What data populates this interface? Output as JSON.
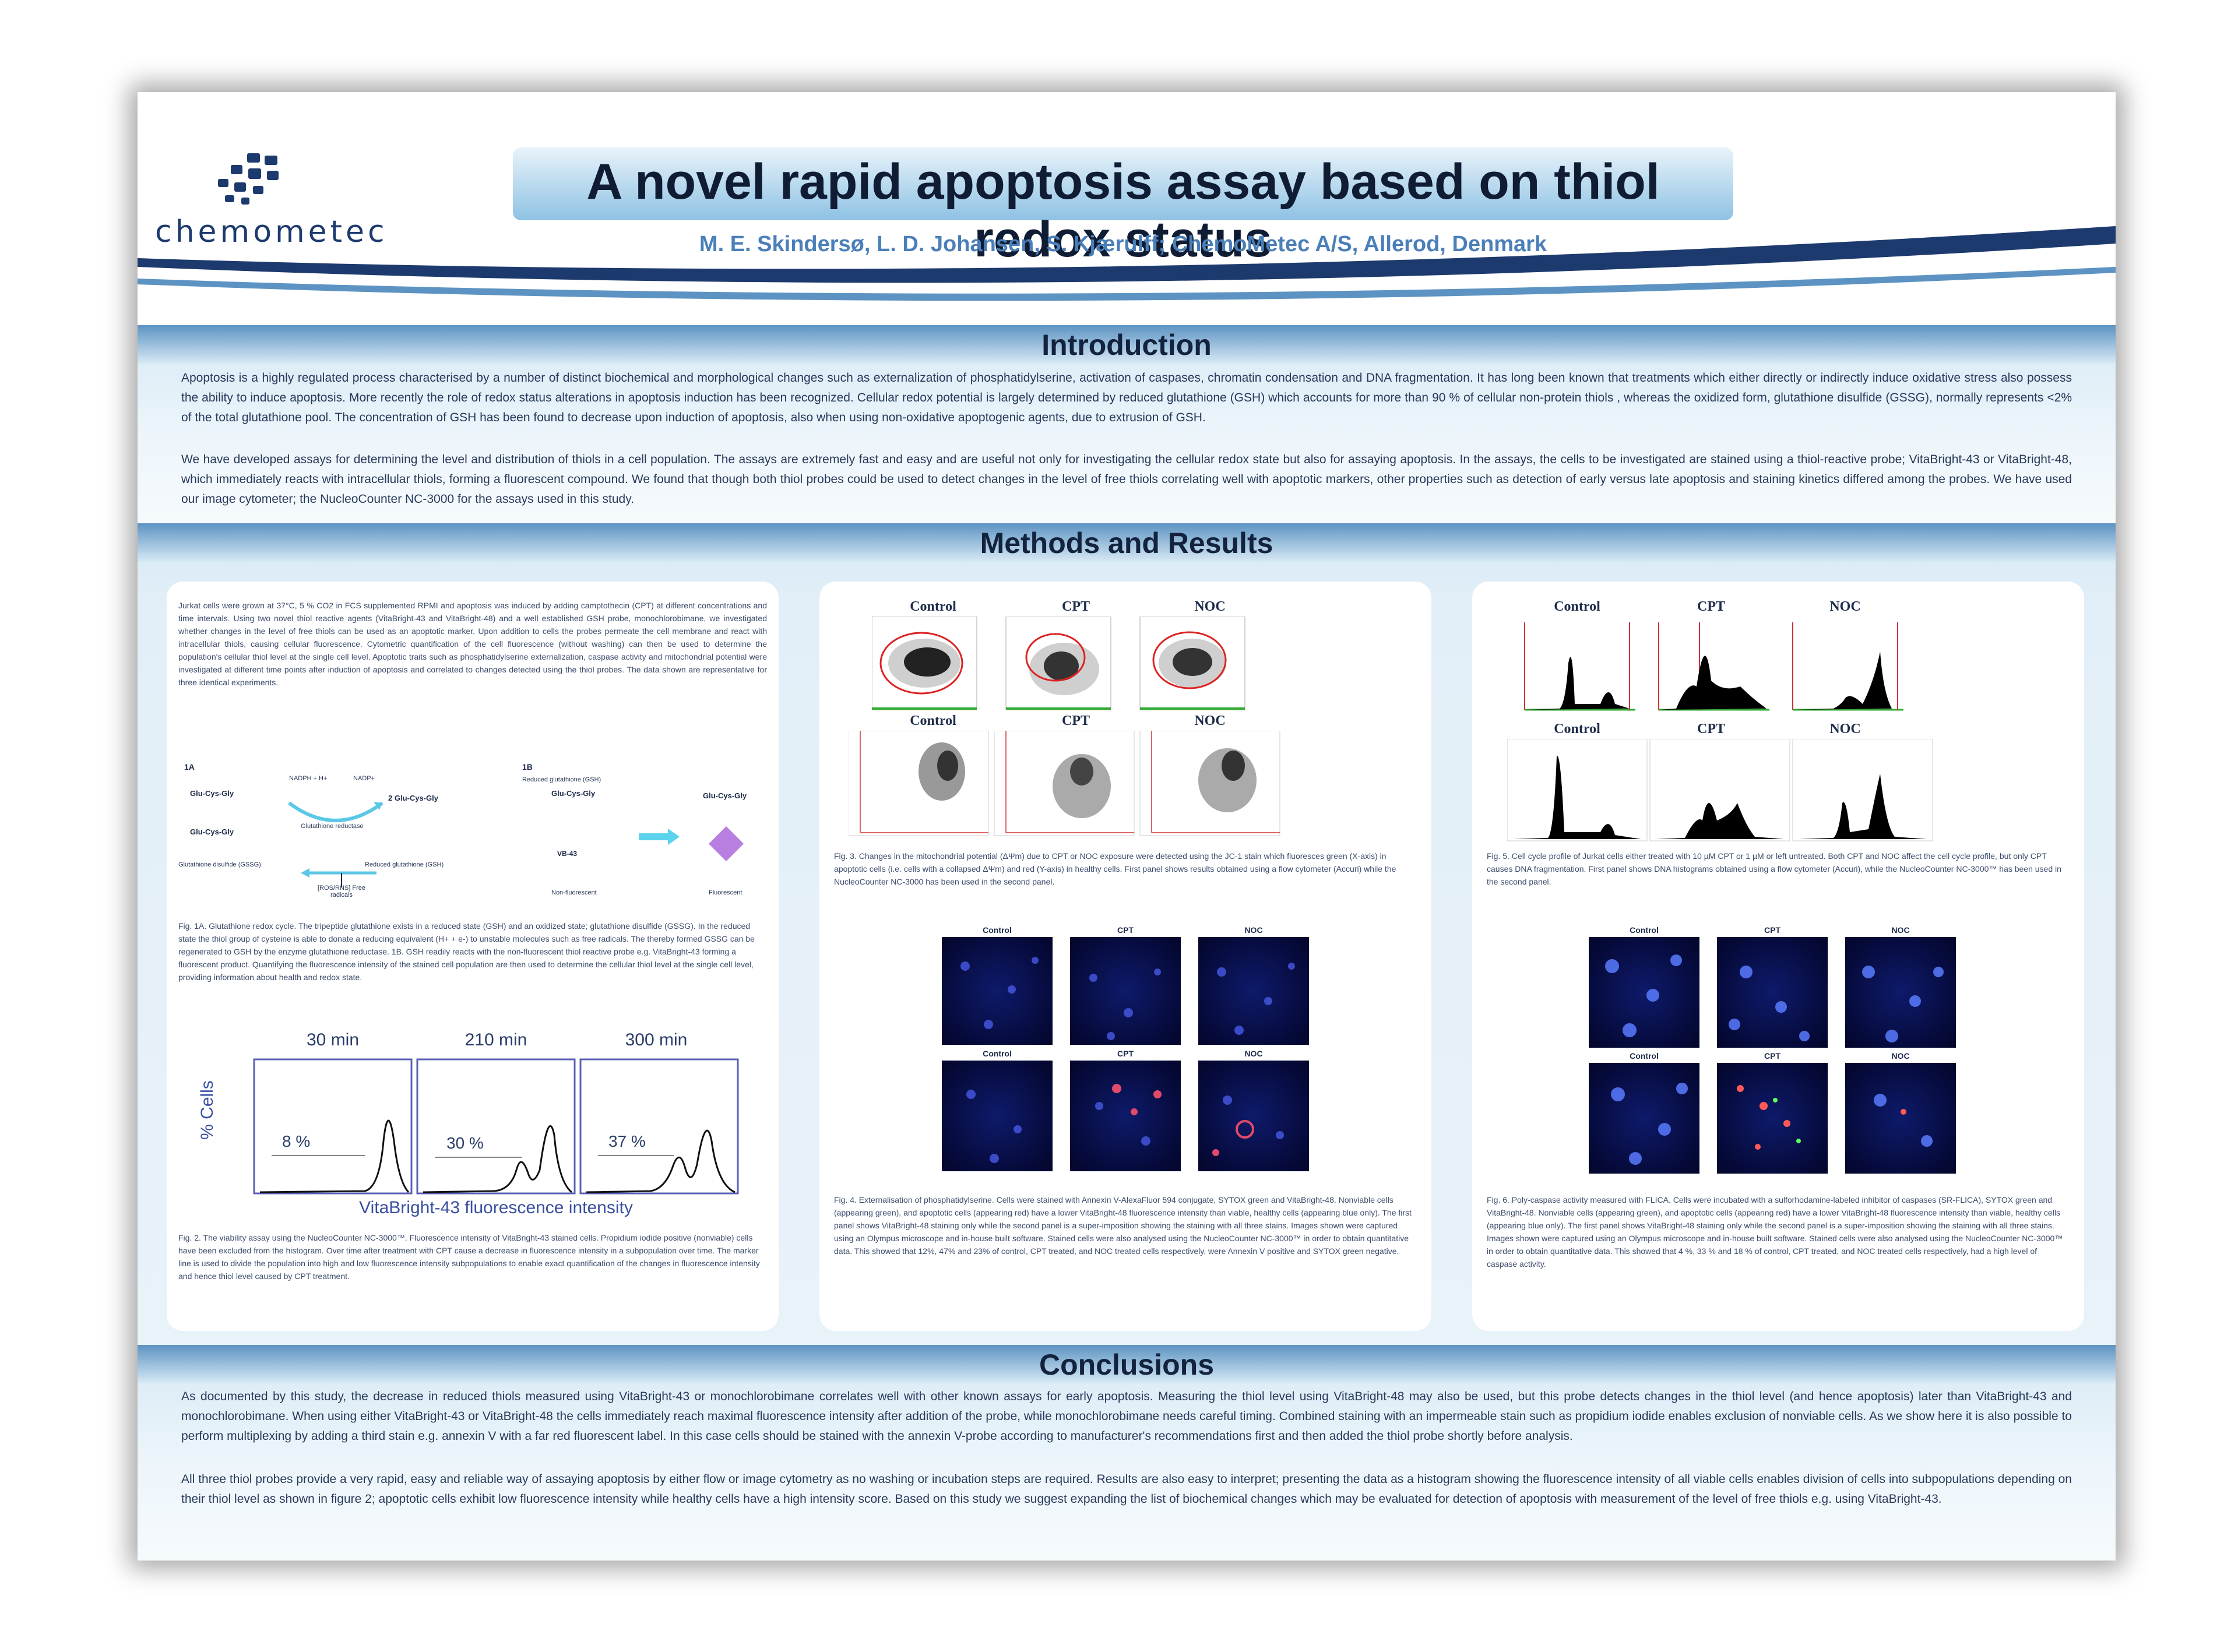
{
  "header": {
    "logo_text": "chemometec",
    "title": "A novel rapid apoptosis assay based on thiol redox status",
    "authors": "M. E. Skindersø, L. D. Johansen, S. Kjærulff; ChemoMetec A/S, Allerod, Denmark"
  },
  "introduction": {
    "heading": "Introduction",
    "p1": "Apoptosis is a highly regulated process characterised by a number of distinct biochemical and morphological changes such as externalization of phosphatidylserine, activation of caspases, chromatin condensation and DNA fragmentation. It has long been known that treatments which either directly or indirectly induce oxidative stress also possess the ability to induce apoptosis. More recently the role of redox status alterations in apoptosis induction has been recognized. Cellular redox potential is largely determined by reduced glutathione (GSH) which accounts for more than 90 % of cellular non-protein thiols , whereas the oxidized form, glutathione disulfide (GSSG), normally represents <2% of the total glutathione pool. The concentration of GSH has been found to decrease upon induction of apoptosis, also when using non-oxidative apoptogenic agents, due to extrusion of GSH.",
    "p2": "We have developed assays for determining the level and distribution of thiols in a cell population. The assays are extremely fast and easy and are useful not only for investigating the cellular redox state but also for assaying apoptosis. In the assays, the cells to be investigated are stained using a thiol-reactive probe; VitaBright-43 or VitaBright-48, which immediately reacts with intracellular thiols, forming a fluorescent compound. We found that though both thiol probes could be used to detect changes in the level of free thiols correlating well with apoptotic markers, other properties such as detection of early versus late apoptosis and staining kinetics differed among the probes. We have used our image cytometer; the NucleoCounter NC-3000 for the assays used in this study."
  },
  "methods": {
    "heading": "Methods and Results",
    "left": {
      "body": "Jurkat cells were grown at 37°C, 5 % CO2 in FCS supplemented RPMI and apoptosis was induced by adding camptothecin (CPT) at different concentrations and time intervals. Using two novel thiol reactive agents (VitaBright-43 and VitaBright-48) and a well established GSH probe, monochlorobimane, we investigated whether changes in the level of free thiols can be used as an apoptotic marker. Upon addition to cells the probes permeate the cell membrane and react with intracellular thiols, causing cellular fluorescence. Cytometric quantification of the cell fluorescence (without washing) can then be used to determine the population's cellular thiol level at the single cell level. Apoptotic traits such as phosphatidylserine externalization, caspase activity and mitochondrial potential were investigated at different time points after induction of apoptosis and correlated to changes detected using the thiol probes. The data shown are representative for three identical experiments.",
      "fig1a_label": "1A",
      "fig1b_label": "1B",
      "gsg1": "Glu-Cys-Gly",
      "gsg2": "Glu-Cys-Gly",
      "two_gsh": "2 Glu-Cys-Gly",
      "nadph": "NADPH + H+",
      "nadp": "NADP+",
      "reductase": "Glutathione reductase",
      "gssg_label": "Glutathione disulfide (GSSG)",
      "gsh_label": "Reduced glutathione (GSH)",
      "ros_label": "[ROS/RNS] Free radicals",
      "reduced_gsh_1b": "Reduced glutathione (GSH)",
      "gsh_1b": "Glu-Cys-Gly",
      "product_1b": "Glu-Cys-Gly",
      "vb43": "VB-43",
      "nonfluor": "Non-fluorescent",
      "fluor": "Fluorescent",
      "fig1_caption": "Fig. 1A. Glutathione redox cycle. The tripeptide glutathione exists in a reduced state (GSH) and an oxidized state; glutathione disulfide (GSSG). In the reduced state the thiol group of cysteine is able to donate a reducing equivalent (H+ + e-) to unstable molecules such as free radicals. The thereby formed GSSG can be regenerated to GSH by the enzyme glutathione reductase. 1B. GSH readily reacts with the non-fluorescent thiol reactive probe e.g. VitaBright-43 forming a fluorescent product. Quantifying the fluorescence intensity of the stained cell population are then used to determine the cellular thiol level at the single cell level, providing information about health and redox state.",
      "hist": {
        "ylabel": "% Cells",
        "xlabel": "VitaBright-43 fluorescence intensity",
        "panels": [
          {
            "title": "30 min",
            "pct": "8 %"
          },
          {
            "title": "210 min",
            "pct": "30 %"
          },
          {
            "title": "300 min",
            "pct": "37 %"
          }
        ]
      },
      "fig2_caption": "Fig. 2. The viability assay using the NucleoCounter NC-3000™. Fluorescence intensity of VitaBright-43 stained cells. Propidium iodide positive (nonviable) cells have been excluded from the histogram. Over time after treatment with CPT cause a decrease in fluorescence intensity in a subpopulation over time. The marker line is used to divide the population into high and low fluorescence intensity subpopulations to enable exact quantification of the changes in fluorescence intensity and hence thiol level caused by CPT treatment."
    },
    "middle": {
      "row1": [
        "Control",
        "CPT",
        "NOC"
      ],
      "row2": [
        "Control",
        "CPT",
        "NOC"
      ],
      "fig3_caption": "Fig. 3. Changes in the mitochondrial potential (ΔΨm) due to CPT or NOC exposure were detected using the JC-1 stain which fluoresces green (X-axis) in apoptotic cells (i.e. cells with a collapsed ΔΨm) and red (Y-axis) in healthy cells. First panel shows results obtained using a flow cytometer (Accuri) while the NucleoCounter NC-3000 has been used in the second panel.",
      "img_row1": [
        "Control",
        "CPT",
        "NOC"
      ],
      "img_row2": [
        "Control",
        "CPT",
        "NOC"
      ],
      "fig4_caption": "Fig. 4. Externalisation of phosphatidylserine. Cells were stained with Annexin V-AlexaFluor 594 conjugate, SYTOX green and VitaBright-48. Nonviable cells (appearing green), and apoptotic cells (appearing red) have a lower VitaBright-48 fluorescence intensity than viable, healthy cells (appearing blue only). The first panel shows VitaBright-48 staining only while the second panel is a super-imposition showing the staining with all three stains. Images shown were captured using an Olympus microscope and in-house built software. Stained cells were also analysed using the NucleoCounter NC-3000™ in order to obtain quantitative data. This showed that 12%, 47% and 23% of control, CPT treated, and NOC treated cells respectively, were Annexin V positive and SYTOX green negative."
    },
    "right": {
      "row1": [
        "Control",
        "CPT",
        "NOC"
      ],
      "row2": [
        "Control",
        "CPT",
        "NOC"
      ],
      "fig5_caption": "Fig. 5. Cell cycle profile of Jurkat cells either treated with 10 µM CPT or 1 µM or left untreated. Both CPT and NOC affect the cell cycle profile, but only CPT causes DNA fragmentation. First panel shows DNA histograms obtained using a flow cytometer (Accuri), while the NucleoCounter NC-3000™ has been used in the second panel.",
      "img_row1": [
        "Control",
        "CPT",
        "NOC"
      ],
      "img_row2": [
        "Control",
        "CPT",
        "NOC"
      ],
      "fig6_caption": "Fig. 6. Poly-caspase activity measured with FLICA. Cells were incubated with a sulforhodamine-labeled inhibitor of caspases (SR-FLICA), SYTOX green and VitaBright-48. Nonviable cells (appearing green), and apoptotic cells (appearing red) have a lower VitaBright-48 fluorescence intensity than viable, healthy cells (appearing blue only). The first panel shows VitaBright-48 staining only while the second panel is a super-imposition showing the staining with all three stains. Images shown were captured using an Olympus microscope and in-house built software. Stained cells were also analysed using the NucleoCounter NC-3000™ in order to obtain quantitative data. This showed that 4 %, 33 % and 18 % of control, CPT treated, and NOC treated cells respectively, had a high level of caspase activity."
    }
  },
  "conclusions": {
    "heading": "Conclusions",
    "p1": "As documented by this study, the decrease in reduced thiols measured using VitaBright-43 or monochlorobimane correlates well with other known assays for early apoptosis. Measuring the thiol level using VitaBright-48 may also be used, but this probe detects changes in the thiol level (and hence apoptosis) later than VitaBright-43 and monochlorobimane. When using either VitaBright-43 or VitaBright-48 the cells immediately reach maximal fluorescence intensity after addition of the probe, while monochlorobimane needs careful timing. Combined staining with an impermeable stain such as propidium iodide enables exclusion of nonviable cells. As we show here it is also possible to perform multiplexing by adding a third stain e.g. annexin V with a far red fluorescent label. In this case cells should be stained with the annexin V-probe according to manufacturer's recommendations first and then added the thiol probe shortly before analysis.",
    "p2": "All three thiol probes provide a very rapid, easy and reliable way of assaying apoptosis by either flow or image cytometry as no washing or incubation steps are required. Results are also easy to interpret; presenting the data as a histogram showing the fluorescence intensity of all viable cells enables division of cells into subpopulations depending on their thiol level as shown in figure 2; apoptotic cells exhibit low fluorescence intensity while healthy cells have a high intensity score. Based on this study we suggest expanding the list of biochemical changes which may be evaluated for detection of apoptosis with measurement of the level of free thiols e.g. using VitaBright-43."
  },
  "colors": {
    "band": "#5d93c2",
    "title_bg": "#8ec2e4",
    "authors": "#4b7fb9",
    "navy": "#1d3a6e"
  }
}
